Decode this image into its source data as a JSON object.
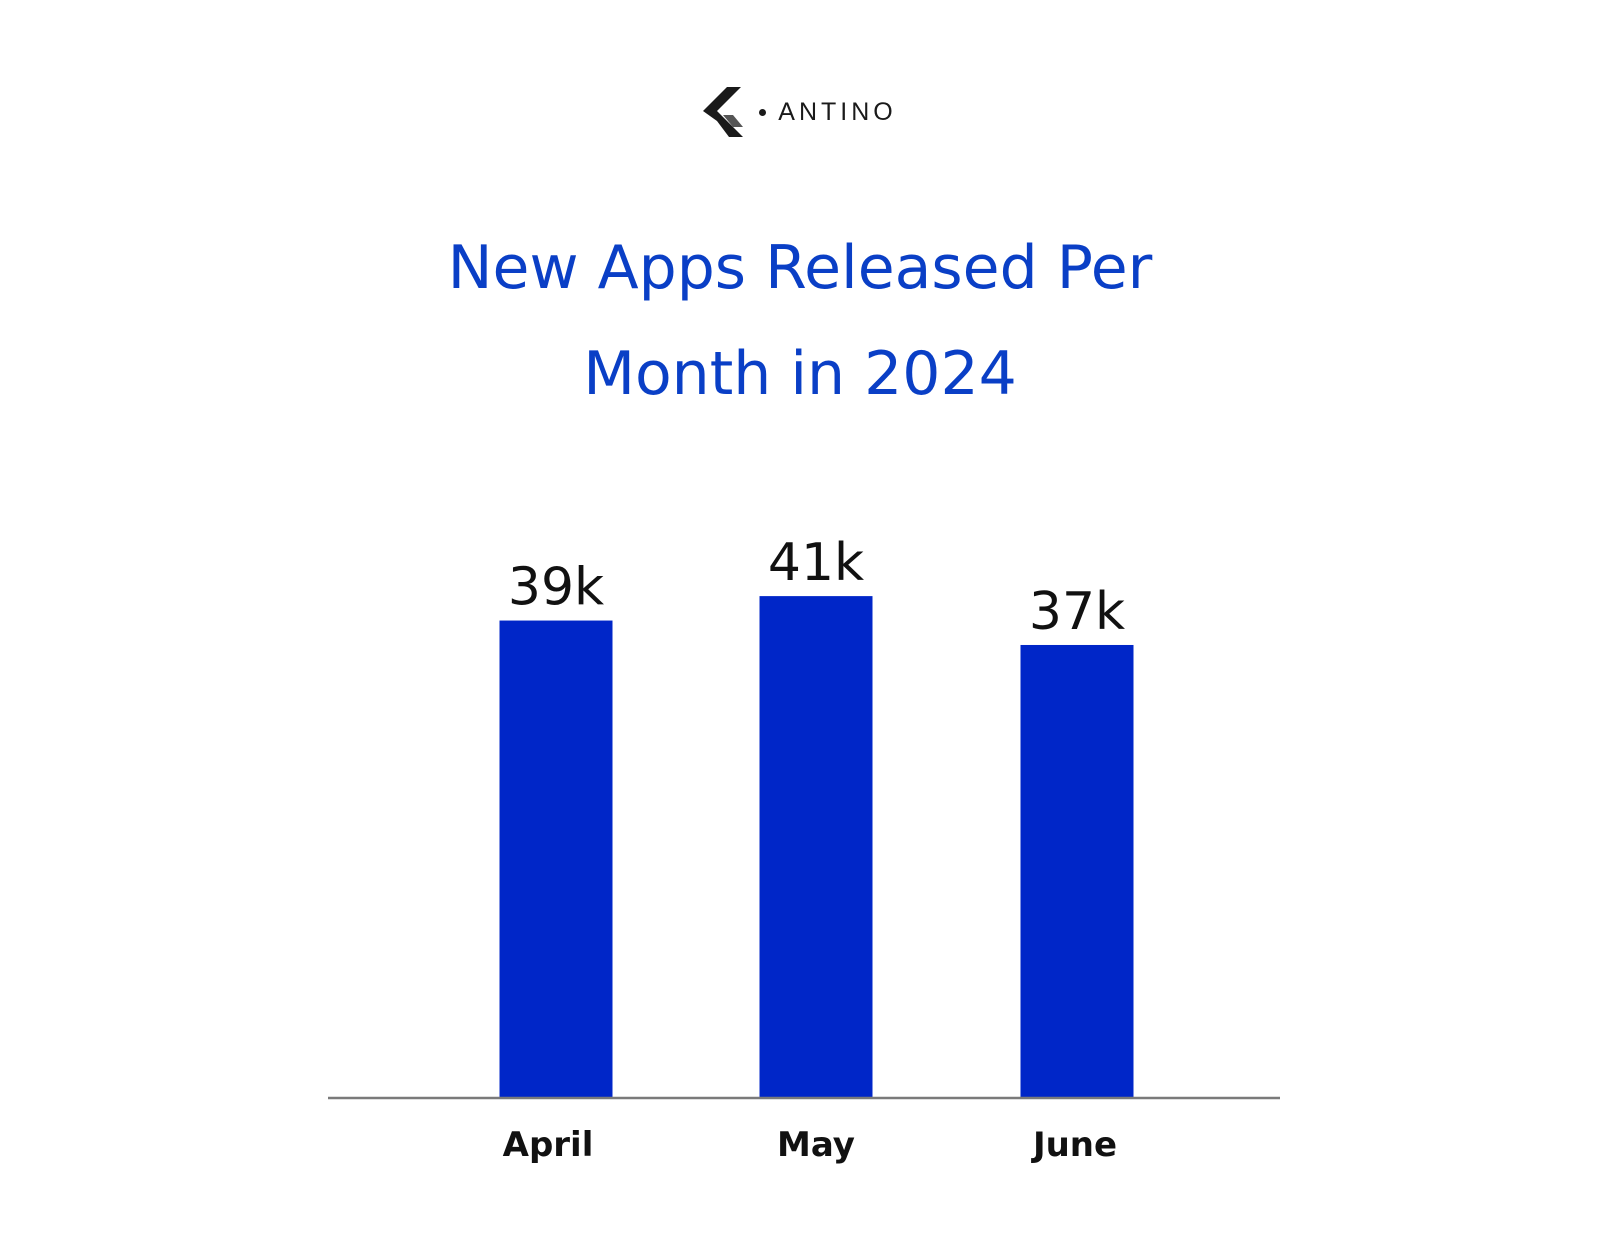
{
  "brand": {
    "name": "ANTINO"
  },
  "chart_data": {
    "type": "bar",
    "title_lines": [
      "New Apps Released Per",
      "Month in 2024"
    ],
    "title": "New Apps Released Per Month in 2024",
    "categories": [
      "April",
      "May",
      "June"
    ],
    "values": [
      39,
      41,
      37
    ],
    "data_labels": [
      "39k",
      "41k",
      "37k"
    ],
    "ylim": [
      0,
      41.5
    ],
    "grid": false,
    "legend": "none",
    "colors": {
      "bar": "#0026c8",
      "title": "#0a3fc6",
      "axis": "#7a7a7a"
    }
  }
}
